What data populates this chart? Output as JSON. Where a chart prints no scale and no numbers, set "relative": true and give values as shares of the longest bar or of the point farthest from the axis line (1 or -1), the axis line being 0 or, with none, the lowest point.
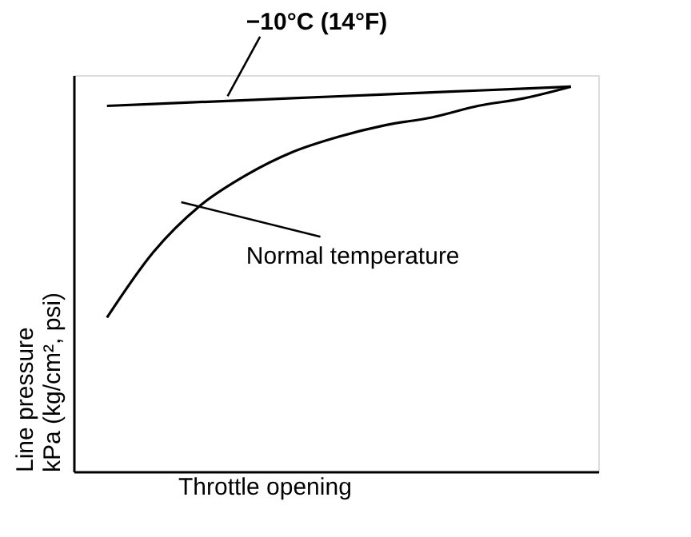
{
  "chart_data": {
    "type": "line",
    "relative": true,
    "xlabel": "Throttle opening",
    "ylabel": "Line pressure\nkPa (kg/cm², psi)",
    "categories": [
      null,
      null,
      null,
      null,
      null,
      null,
      null,
      null,
      null,
      null,
      null
    ],
    "series": [
      {
        "name": "−10°C (14°F)",
        "color": "#000000",
        "values": [
          0.95,
          0.955,
          0.96,
          0.965,
          0.97,
          0.975,
          0.98,
          0.985,
          0.99,
          0.995,
          1.0
        ]
      },
      {
        "name": "Normal temperature",
        "color": "#000000",
        "values": [
          0.4,
          0.57,
          0.69,
          0.77,
          0.83,
          0.87,
          0.9,
          0.92,
          0.95,
          0.97,
          1.0
        ]
      }
    ],
    "marker": "none",
    "line_style": "solid"
  }
}
